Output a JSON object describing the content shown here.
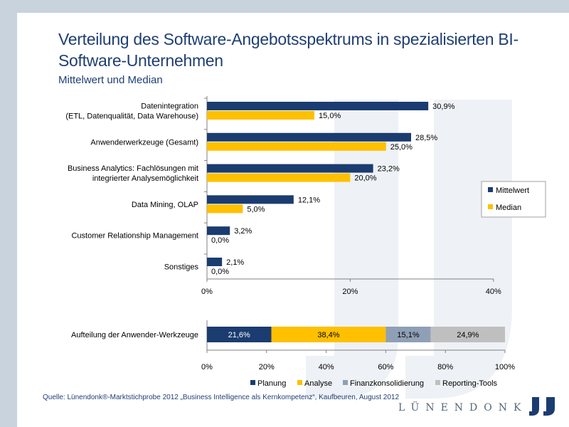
{
  "title": "Verteilung des Software-Angebotsspektrums in spezialisierten BI-Software-Unternehmen",
  "subtitle": "Mittelwert und Median",
  "source": "Quelle: Lünendonk®-Marktstichprobe 2012 „Business Intelligence als Kernkompetenz“, Kaufbeuren, August 2012",
  "logo": "LÜNENDONK",
  "colors": {
    "mittelwert": "#1b3c70",
    "median": "#ffc000",
    "planung": "#1b3c70",
    "analyse": "#ffc000",
    "finanz": "#8fa0b6",
    "reporting": "#bfbfbf",
    "title": "#1f3f73"
  },
  "chart_data": [
    {
      "type": "bar",
      "orientation": "horizontal",
      "categories": [
        [
          "Datenintegration",
          "(ETL, Datenqualität, Data Warehouse)"
        ],
        [
          "Anwenderwerkzeuge (Gesamt)"
        ],
        [
          "Business Analytics: Fachlösungen mit",
          "integrierter Analysemöglichkeit"
        ],
        [
          "Data Mining, OLAP"
        ],
        [
          "Customer Relationship Management"
        ],
        [
          "Sonstiges"
        ]
      ],
      "series": [
        {
          "name": "Mittelwert",
          "values": [
            30.9,
            28.5,
            23.2,
            12.1,
            3.2,
            2.1
          ],
          "labels": [
            "30,9%",
            "28,5%",
            "23,2%",
            "12,1%",
            "3,2%",
            "2,1%"
          ]
        },
        {
          "name": "Median",
          "values": [
            15.0,
            25.0,
            20.0,
            5.0,
            0.0,
            0.0
          ],
          "labels": [
            "15,0%",
            "25,0%",
            "20,0%",
            "5,0%",
            "0,0%",
            "0,0%"
          ]
        }
      ],
      "xlim": [
        0,
        40
      ],
      "xticks": [
        "0%",
        "20%",
        "40%"
      ],
      "legend_position": "right"
    },
    {
      "type": "bar",
      "orientation": "horizontal",
      "stacked": true,
      "category": "Aufteilung der Anwender-Werkzeuge",
      "series": [
        {
          "name": "Planung",
          "value": 21.6,
          "label": "21,6%"
        },
        {
          "name": "Analyse",
          "value": 38.4,
          "label": "38,4%"
        },
        {
          "name": "Finanzkonsolidierung",
          "value": 15.1,
          "label": "15,1%"
        },
        {
          "name": "Reporting-Tools",
          "value": 24.9,
          "label": "24,9%"
        }
      ],
      "xlim": [
        0,
        100
      ],
      "xticks": [
        "0%",
        "20%",
        "40%",
        "60%",
        "80%",
        "100%"
      ],
      "legend_position": "bottom"
    }
  ]
}
